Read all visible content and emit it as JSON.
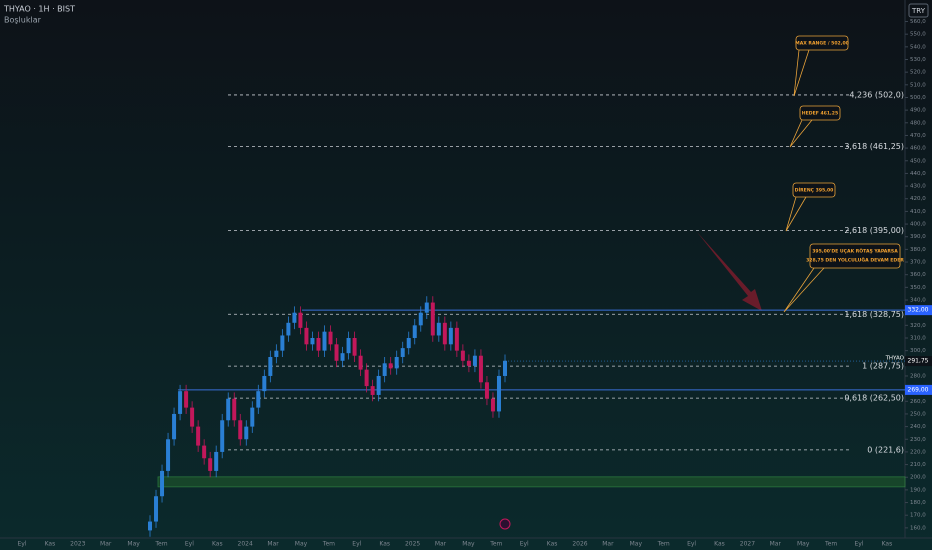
{
  "chart_data": {
    "type": "candlestick",
    "title": "THYAO · 1H · BIST",
    "subtitle": "Boşluklar",
    "currency": "TRY",
    "symbol": "THYAO",
    "last_price": {
      "value": 291.75,
      "label": "291,75"
    },
    "up_color": "#2a7fd4",
    "down_color": "#c2185b",
    "ylim": [
      152,
      577
    ],
    "yticks": [
      {
        "value": 160,
        "label": "160,0"
      },
      {
        "value": 170,
        "label": "170,0"
      },
      {
        "value": 180,
        "label": "180,0"
      },
      {
        "value": 190,
        "label": "190,0"
      },
      {
        "value": 200,
        "label": "200,0"
      },
      {
        "value": 210,
        "label": "210,0"
      },
      {
        "value": 220,
        "label": "220,0"
      },
      {
        "value": 230,
        "label": "230,0"
      },
      {
        "value": 240,
        "label": "240,0"
      },
      {
        "value": 250,
        "label": "250,0"
      },
      {
        "value": 260,
        "label": "260,0"
      },
      {
        "value": 270,
        "label": "270,0"
      },
      {
        "value": 280,
        "label": "280,0"
      },
      {
        "value": 290,
        "label": "290,0"
      },
      {
        "value": 300,
        "label": "300,0"
      },
      {
        "value": 310,
        "label": "310,0"
      },
      {
        "value": 320,
        "label": "320,0"
      },
      {
        "value": 330,
        "label": "330,0"
      },
      {
        "value": 340,
        "label": "340,0"
      },
      {
        "value": 350,
        "label": "350,0"
      },
      {
        "value": 360,
        "label": "360,0"
      },
      {
        "value": 370,
        "label": "370,0"
      },
      {
        "value": 380,
        "label": "380,0"
      },
      {
        "value": 390,
        "label": "390,0"
      },
      {
        "value": 400,
        "label": "400,0"
      },
      {
        "value": 410,
        "label": "410,0"
      },
      {
        "value": 420,
        "label": "420,0"
      },
      {
        "value": 430,
        "label": "430,0"
      },
      {
        "value": 440,
        "label": "440,0"
      },
      {
        "value": 450,
        "label": "450,0"
      },
      {
        "value": 460,
        "label": "460,0"
      },
      {
        "value": 470,
        "label": "470,0"
      },
      {
        "value": 480,
        "label": "480,0"
      },
      {
        "value": 490,
        "label": "490,0"
      },
      {
        "value": 500,
        "label": "500,0"
      },
      {
        "value": 510,
        "label": "510,0"
      },
      {
        "value": 520,
        "label": "520,0"
      },
      {
        "value": 530,
        "label": "530,0"
      },
      {
        "value": 540,
        "label": "540,0"
      },
      {
        "value": 550,
        "label": "550,0"
      },
      {
        "value": 560,
        "label": "560,0"
      }
    ],
    "time_labels": [
      "Eyl",
      "Kas",
      "2023",
      "Mar",
      "May",
      "Tem",
      "Eyl",
      "Kas",
      "2024",
      "Mar",
      "May",
      "Tem",
      "Eyl",
      "Kas",
      "2025",
      "Mar",
      "May",
      "Tem",
      "Eyl",
      "Kas",
      "2026",
      "Mar",
      "May",
      "Tem",
      "Eyl",
      "Kas",
      "2027",
      "Mar",
      "May",
      "Tem",
      "Eyl",
      "Kas"
    ],
    "open": [
      158,
      165,
      185,
      205,
      230,
      250,
      268,
      255,
      240,
      225,
      215,
      205,
      220,
      245,
      262,
      245,
      230,
      240,
      255,
      268,
      280,
      295,
      300,
      312,
      322,
      330,
      318,
      305,
      310,
      300,
      315,
      305,
      292,
      298,
      310,
      296,
      285,
      272,
      265,
      280,
      290,
      286,
      295,
      302,
      310,
      320,
      330,
      338,
      312,
      322,
      305,
      318,
      300,
      292,
      288,
      296,
      275,
      262,
      252,
      280
    ],
    "high": [
      170,
      190,
      210,
      235,
      255,
      273,
      273,
      260,
      245,
      230,
      220,
      225,
      250,
      267,
      267,
      250,
      245,
      260,
      273,
      285,
      300,
      305,
      317,
      327,
      335,
      335,
      323,
      315,
      315,
      320,
      320,
      310,
      303,
      315,
      315,
      301,
      290,
      277,
      285,
      295,
      295,
      300,
      307,
      315,
      325,
      335,
      343,
      343,
      327,
      327,
      323,
      323,
      305,
      297,
      301,
      301,
      280,
      267,
      285,
      297
    ],
    "low": [
      153,
      160,
      180,
      200,
      225,
      245,
      250,
      235,
      220,
      210,
      200,
      200,
      215,
      240,
      240,
      225,
      225,
      235,
      250,
      263,
      275,
      290,
      295,
      307,
      317,
      313,
      300,
      300,
      295,
      295,
      300,
      287,
      287,
      293,
      291,
      280,
      267,
      260,
      260,
      275,
      281,
      281,
      290,
      297,
      305,
      315,
      325,
      307,
      307,
      300,
      300,
      295,
      287,
      283,
      283,
      270,
      257,
      247,
      247,
      275
    ],
    "close": [
      165,
      185,
      205,
      230,
      250,
      268,
      255,
      240,
      225,
      215,
      205,
      220,
      245,
      262,
      245,
      230,
      240,
      255,
      268,
      280,
      295,
      300,
      312,
      322,
      330,
      318,
      305,
      310,
      300,
      315,
      305,
      292,
      298,
      310,
      296,
      285,
      272,
      265,
      280,
      290,
      286,
      295,
      302,
      310,
      320,
      330,
      338,
      312,
      322,
      305,
      318,
      300,
      292,
      288,
      296,
      275,
      262,
      252,
      280,
      292
    ],
    "fib_levels": [
      {
        "value": 502,
        "label": "4,236 (502,0)"
      },
      {
        "value": 461.25,
        "label": "3,618 (461,25)"
      },
      {
        "value": 395,
        "label": "2,618 (395,00)"
      },
      {
        "value": 328.75,
        "label": "1,618 (328,75)"
      },
      {
        "value": 287.75,
        "label": "1 (287,75)"
      },
      {
        "value": 262.5,
        "label": "0,618 (262,50)"
      },
      {
        "value": 221.6,
        "label": "0 (221,6)"
      }
    ],
    "levels": [
      {
        "value": 332,
        "label": "332,00"
      },
      {
        "value": 269,
        "label": "269,00"
      }
    ],
    "zone": [
      192.4,
      200.3
    ],
    "notes": [
      "MAX RANGE / 502,00",
      "HEDEF 461,25",
      "DİRENÇ 395,00",
      "395,00'DE UÇAK RÖTAŞ YAPARSA",
      "328,75 DEN YOLCULUĞA DEVAM EDER"
    ]
  }
}
